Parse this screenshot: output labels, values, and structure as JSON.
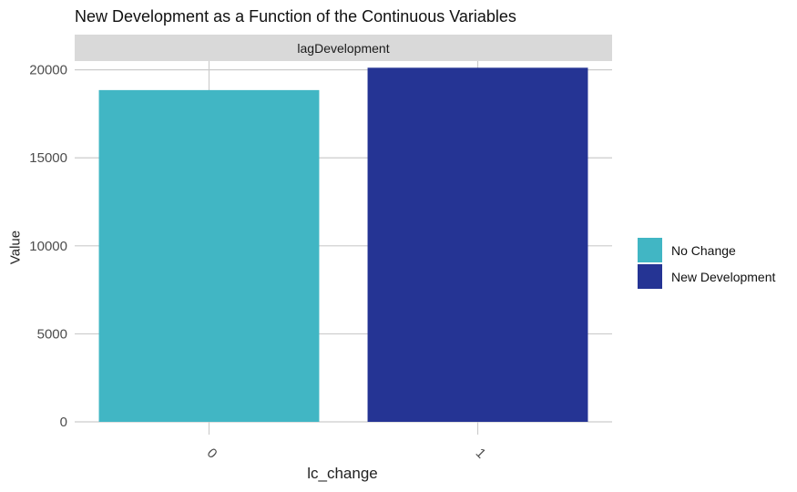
{
  "chart_data": {
    "type": "bar",
    "title": "New Development as a Function of the Continuous Variables",
    "facet": "lagDevelopment",
    "xlabel": "lc_change",
    "ylabel": "Value",
    "categories": [
      "0",
      "1"
    ],
    "values": [
      18850,
      20120
    ],
    "colors": [
      "#41b6c4",
      "#253494"
    ],
    "yticks": [
      0,
      5000,
      10000,
      15000,
      20000
    ],
    "ylim": [
      0,
      20500
    ],
    "grid": true,
    "legend": {
      "position": "right",
      "entries": [
        {
          "label": "No Change",
          "color": "#41b6c4"
        },
        {
          "label": "New Development",
          "color": "#253494"
        }
      ]
    }
  }
}
